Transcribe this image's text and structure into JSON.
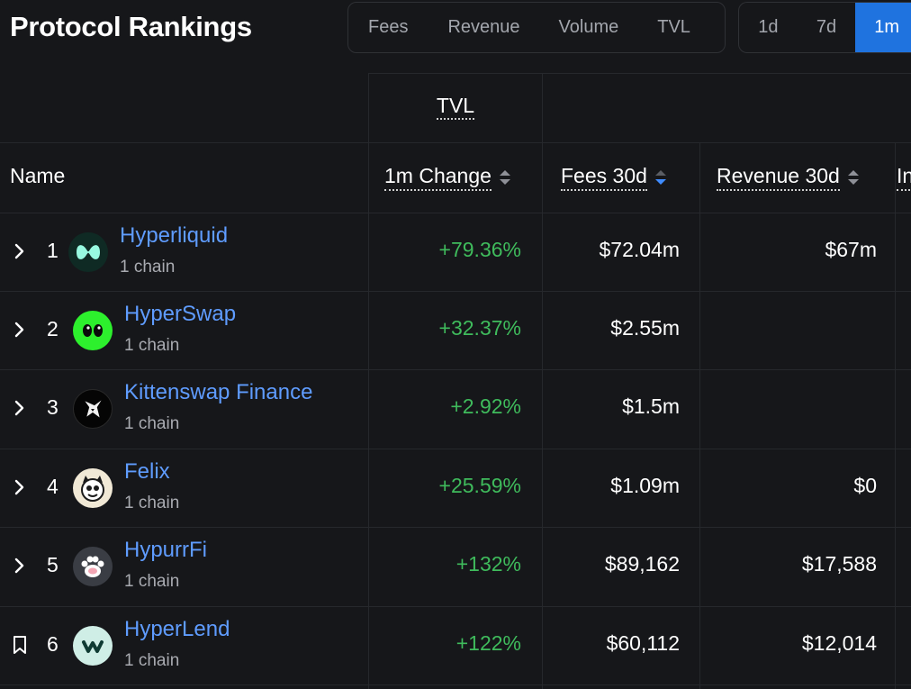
{
  "page": {
    "title": "Protocol Rankings"
  },
  "metric_tabs": [
    {
      "label": "Fees"
    },
    {
      "label": "Revenue"
    },
    {
      "label": "Volume"
    },
    {
      "label": "TVL"
    }
  ],
  "period_tabs": [
    {
      "label": "1d",
      "active": false
    },
    {
      "label": "7d",
      "active": false
    },
    {
      "label": "1m",
      "active": true
    }
  ],
  "table": {
    "group_header": "TVL",
    "columns": {
      "name": "Name",
      "change": "1m Change",
      "fees": "Fees 30d",
      "revenue": "Revenue 30d",
      "next_partial": "In"
    },
    "rows": [
      {
        "rank": "1",
        "name": "Hyperliquid",
        "chains": "1 chain",
        "change": "+79.36%",
        "fees": "$72.04m",
        "revenue": "$67m",
        "icon": "chevron-right-icon"
      },
      {
        "rank": "2",
        "name": "HyperSwap",
        "chains": "1 chain",
        "change": "+32.37%",
        "fees": "$2.55m",
        "revenue": "",
        "icon": "chevron-right-icon"
      },
      {
        "rank": "3",
        "name": "Kittenswap Finance",
        "chains": "1 chain",
        "change": "+2.92%",
        "fees": "$1.5m",
        "revenue": "",
        "icon": "chevron-right-icon"
      },
      {
        "rank": "4",
        "name": "Felix",
        "chains": "1 chain",
        "change": "+25.59%",
        "fees": "$1.09m",
        "revenue": "$0",
        "icon": "chevron-right-icon"
      },
      {
        "rank": "5",
        "name": "HypurrFi",
        "chains": "1 chain",
        "change": "+132%",
        "fees": "$89,162",
        "revenue": "$17,588",
        "icon": "chevron-right-icon"
      },
      {
        "rank": "6",
        "name": "HyperLend",
        "chains": "1 chain",
        "change": "+122%",
        "fees": "$60,112",
        "revenue": "$12,014",
        "icon": "bookmark-icon"
      }
    ]
  },
  "colors": {
    "background": "#16171a",
    "accent": "#1f73df",
    "link": "#5f9cff",
    "positive": "#3fbb5c"
  }
}
